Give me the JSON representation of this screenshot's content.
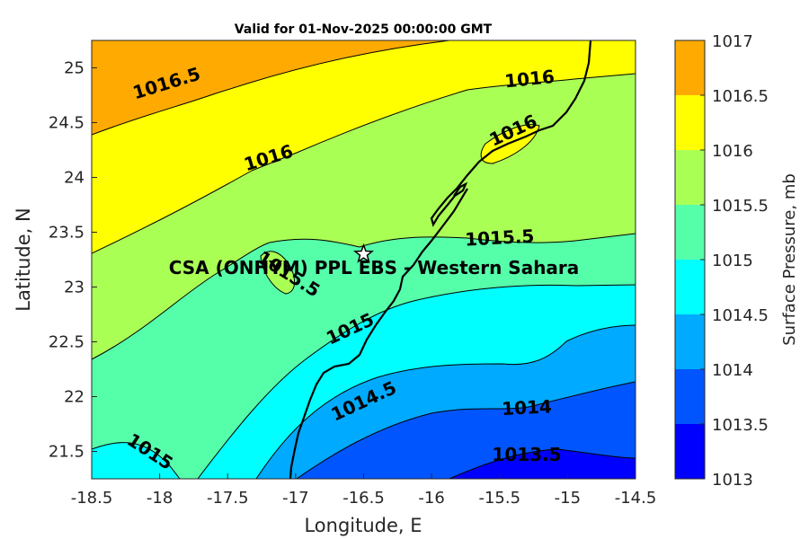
{
  "chart_data": {
    "type": "filled-contour",
    "title": "Valid for 01-Nov-2025 00:00:00 GMT",
    "xlabel": "Longitude, E",
    "ylabel": "Latitude, N",
    "xlim": [
      -18.5,
      -14.5
    ],
    "ylim": [
      21.25,
      25.25
    ],
    "xticks": [
      "-18.5",
      "-18",
      "-17.5",
      "-17",
      "-16.5",
      "-16",
      "-15.5",
      "-15",
      "-14.5"
    ],
    "yticks": [
      "21.5",
      "22",
      "22.5",
      "23",
      "23.5",
      "24",
      "24.5",
      "25"
    ],
    "colorbar": {
      "label": "Surface Pressure, mb",
      "ticks": [
        "1013",
        "1013.5",
        "1014",
        "1014.5",
        "1015",
        "1015.5",
        "1016",
        "1016.5",
        "1017"
      ],
      "levels": [
        {
          "min": 1013.0,
          "max": 1013.5,
          "color": "#0000ff"
        },
        {
          "min": 1013.5,
          "max": 1014.0,
          "color": "#0055ff"
        },
        {
          "min": 1014.0,
          "max": 1014.5,
          "color": "#00aaff"
        },
        {
          "min": 1014.5,
          "max": 1015.0,
          "color": "#00ffff"
        },
        {
          "min": 1015.0,
          "max": 1015.5,
          "color": "#55ffaa"
        },
        {
          "min": 1015.5,
          "max": 1016.0,
          "color": "#aaff55"
        },
        {
          "min": 1016.0,
          "max": 1016.5,
          "color": "#ffff00"
        },
        {
          "min": 1016.5,
          "max": 1017.0,
          "color": "#ffaa00"
        }
      ]
    },
    "contour_labels": [
      {
        "text": "1016.5",
        "lon": -17.95,
        "lat": 24.86,
        "angle": -17
      },
      {
        "text": "1016",
        "lon": -15.28,
        "lat": 24.9,
        "angle": -6
      },
      {
        "text": "1016",
        "lon": -17.2,
        "lat": 24.18,
        "angle": -17
      },
      {
        "text": "1016",
        "lon": -15.4,
        "lat": 24.43,
        "angle": -25
      },
      {
        "text": "1015.5",
        "lon": -15.5,
        "lat": 23.45,
        "angle": -3
      },
      {
        "text": "1015.5",
        "lon": -17.05,
        "lat": 23.12,
        "angle": 32
      },
      {
        "text": "1015",
        "lon": -16.6,
        "lat": 22.62,
        "angle": -25
      },
      {
        "text": "1015",
        "lon": -18.07,
        "lat": 21.5,
        "angle": 33
      },
      {
        "text": "1014.5",
        "lon": -16.5,
        "lat": 21.96,
        "angle": -25
      },
      {
        "text": "1014",
        "lon": -15.3,
        "lat": 21.9,
        "angle": -3
      },
      {
        "text": "1013.5",
        "lon": -15.3,
        "lat": 21.47,
        "angle": 0
      }
    ],
    "site": {
      "name": "CSA (ONHYM) PPL EBS  - Western Sahara",
      "lon": -16.5,
      "lat": 23.3
    }
  }
}
